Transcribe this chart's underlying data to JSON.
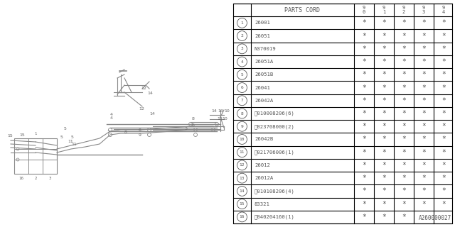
{
  "title": "A260000027",
  "table_header": [
    "PARTS CORD",
    "9\n0",
    "9\n1",
    "9\n2",
    "9\n3",
    "9\n4"
  ],
  "rows": [
    {
      "num": "1",
      "part": "26001",
      "stars": [
        true,
        true,
        true,
        true,
        true
      ]
    },
    {
      "num": "2",
      "part": "26051",
      "stars": [
        true,
        true,
        true,
        true,
        true
      ]
    },
    {
      "num": "3",
      "part": "N370019",
      "stars": [
        true,
        true,
        true,
        true,
        true
      ]
    },
    {
      "num": "4",
      "part": "26051A",
      "stars": [
        true,
        true,
        true,
        true,
        true
      ]
    },
    {
      "num": "5",
      "part": "26051B",
      "stars": [
        true,
        true,
        true,
        true,
        true
      ]
    },
    {
      "num": "6",
      "part": "26041",
      "stars": [
        true,
        true,
        true,
        true,
        true
      ]
    },
    {
      "num": "7",
      "part": "26042A",
      "stars": [
        true,
        true,
        true,
        true,
        true
      ]
    },
    {
      "num": "8",
      "part": "Ⓑ010008206(6)",
      "stars": [
        true,
        true,
        true,
        true,
        true
      ]
    },
    {
      "num": "9",
      "part": "Ⓝ023708000(2)",
      "stars": [
        true,
        true,
        true,
        true,
        true
      ]
    },
    {
      "num": "10",
      "part": "26042B",
      "stars": [
        true,
        true,
        true,
        true,
        true
      ]
    },
    {
      "num": "11",
      "part": "Ⓝ021706006(1)",
      "stars": [
        true,
        true,
        true,
        true,
        true
      ]
    },
    {
      "num": "12",
      "part": "26012",
      "stars": [
        true,
        true,
        true,
        true,
        true
      ]
    },
    {
      "num": "13",
      "part": "26012A",
      "stars": [
        true,
        true,
        true,
        true,
        true
      ]
    },
    {
      "num": "14",
      "part": "Ⓑ010108206(4)",
      "stars": [
        true,
        true,
        true,
        true,
        true
      ]
    },
    {
      "num": "15",
      "part": "83321",
      "stars": [
        true,
        true,
        true,
        true,
        true
      ]
    },
    {
      "num": "16",
      "part": "Ⓢ040204160(1)",
      "stars": [
        true,
        true,
        true,
        false,
        false
      ]
    }
  ],
  "bg_color": "#ffffff",
  "table_border_color": "#000000",
  "text_color": "#555555",
  "diagram_bg": "#ffffff"
}
